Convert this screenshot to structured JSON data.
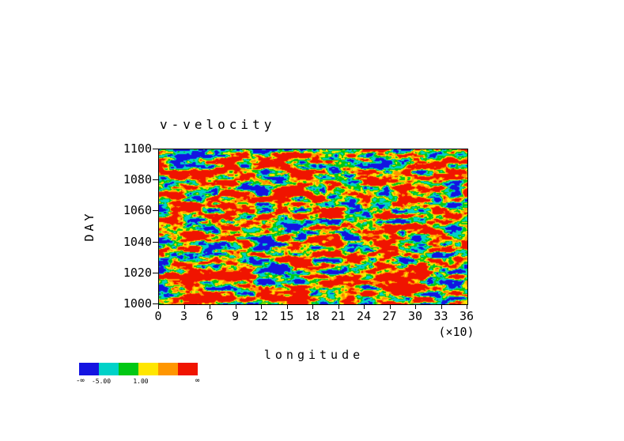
{
  "chart": {
    "title": "v-velocity",
    "xlabel": "longitude",
    "x_scale_note": "(×10)",
    "ylabel": "DAY",
    "x_ticks": [
      "0",
      "3",
      "6",
      "9",
      "12",
      "15",
      "18",
      "21",
      "24",
      "27",
      "30",
      "33",
      "36"
    ],
    "y_ticks": [
      "1100",
      "1080",
      "1060",
      "1040",
      "1020",
      "1000"
    ],
    "colorbar": {
      "colors": [
        "#1414e1",
        "#00d2c8",
        "#00c814",
        "#ffe600",
        "#ff9600",
        "#f01400"
      ],
      "tick_labels": [
        "-5.00",
        "1.00"
      ],
      "end_labels": [
        "-∞",
        "∞"
      ]
    }
  },
  "chart_data": {
    "type": "heatmap",
    "title": "v-velocity",
    "xlabel": "longitude (×10)",
    "ylabel": "DAY",
    "xlim": [
      0,
      36
    ],
    "ylim": [
      1000,
      1100
    ],
    "x_tick_step": 3,
    "y_tick_step": 20,
    "grid": false,
    "legend_position": "bottom-left colorbar",
    "colorbar_levels_labeled": [
      -5.0,
      1.0
    ],
    "palette": [
      "#1414e1",
      "#00d2c8",
      "#00c814",
      "#ffe600",
      "#ff9600",
      "#f01400"
    ],
    "field_description": "dense turbulent v-velocity anomalies; horizontally elongated patches alternating strong negative (blue) and strong positive (red) values over days 1000-1100 and longitudes 0-360"
  }
}
